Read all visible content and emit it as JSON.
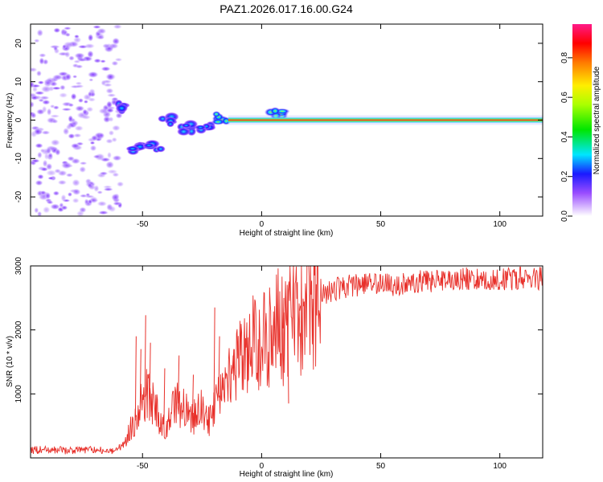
{
  "title": "PAZ1.2026.017.16.00.G24",
  "chart_data": [
    {
      "type": "heatmap",
      "xlabel": "Height of straight line (km)",
      "ylabel": "Frequency (Hz)",
      "xlim": [
        -97,
        118
      ],
      "ylim": [
        -25,
        25
      ],
      "xticks": [
        -50,
        0,
        50,
        100
      ],
      "yticks": [
        -20,
        -10,
        0,
        10,
        20
      ],
      "colorbar": {
        "label": "Normalized spectral amplitude",
        "range": [
          0.0,
          0.97
        ],
        "ticks": [
          0.0,
          0.2,
          0.4,
          0.6,
          0.8
        ],
        "tick_labels": [
          "0.0",
          "0.2",
          "0.4",
          "0.6",
          "0.8"
        ]
      },
      "features": [
        {
          "name": "noise-region",
          "x_range": [
            -97,
            -59
          ],
          "freq_range": [
            -25,
            25
          ],
          "amplitude": 0.05
        },
        {
          "name": "blob",
          "x": -58,
          "freq": 3.5,
          "amplitude": 0.35
        },
        {
          "name": "blob",
          "x": -52,
          "freq": -7.5,
          "amplitude": 0.3
        },
        {
          "name": "blob",
          "x": -45,
          "freq": -7.0,
          "amplitude": 0.25
        },
        {
          "name": "blob",
          "x": -40,
          "freq": 0.0,
          "amplitude": 0.2
        },
        {
          "name": "blob",
          "x": -32,
          "freq": -2.0,
          "amplitude": 0.35
        },
        {
          "name": "blob",
          "x": -23,
          "freq": -1.5,
          "amplitude": 0.3
        },
        {
          "name": "blob",
          "x": -17,
          "freq": 0.5,
          "amplitude": 0.45
        },
        {
          "name": "blob",
          "x": 6,
          "freq": 1.5,
          "amplitude": 0.5
        },
        {
          "name": "carrier-line",
          "x_range": [
            -14,
            118
          ],
          "freq": 0.0,
          "amplitude": 0.95
        }
      ]
    },
    {
      "type": "line",
      "xlabel": "Height of straight line (km)",
      "ylabel": "SNR (10 * v/v)",
      "xlim": [
        -97,
        118
      ],
      "ylim": [
        0,
        3000
      ],
      "xticks": [
        -50,
        0,
        50,
        100
      ],
      "yticks": [
        1000,
        2000,
        3000
      ],
      "series": [
        {
          "name": "SNR",
          "color": "#e8302a",
          "x": [
            -97,
            -90,
            -80,
            -70,
            -62,
            -58,
            -55,
            -52,
            -50,
            -48,
            -46,
            -44,
            -42,
            -40,
            -38,
            -35,
            -32,
            -30,
            -28,
            -26,
            -24,
            -22,
            -20,
            -18,
            -16,
            -14,
            -12,
            -10,
            -8,
            -6,
            -4,
            -2,
            0,
            2,
            4,
            6,
            8,
            10,
            12,
            14,
            16,
            18,
            20,
            24,
            28,
            32,
            36,
            40,
            45,
            50,
            55,
            60,
            65,
            70,
            75,
            80,
            85,
            90,
            95,
            100,
            105,
            110,
            114,
            118
          ],
          "values": [
            120,
            130,
            110,
            130,
            120,
            200,
            450,
            650,
            900,
            1000,
            850,
            700,
            600,
            450,
            700,
            850,
            750,
            600,
            650,
            800,
            700,
            600,
            800,
            1000,
            1150,
            1300,
            1400,
            1450,
            1600,
            1700,
            1750,
            1800,
            1950,
            1900,
            2000,
            2100,
            2050,
            2000,
            2150,
            2200,
            2300,
            2400,
            2450,
            2550,
            2600,
            2650,
            2680,
            2700,
            2720,
            2740,
            2700,
            2720,
            2750,
            2770,
            2760,
            2780,
            2800,
            2790,
            2810,
            2800,
            2790,
            2820,
            2810,
            2800
          ],
          "spikes": [
            [
              -53,
              1900
            ],
            [
              -51,
              1700
            ],
            [
              -49,
              2230
            ],
            [
              -47,
              1800
            ],
            [
              -41,
              1400
            ],
            [
              -35,
              1600
            ],
            [
              -29,
              1300
            ],
            [
              -20,
              2350
            ],
            [
              -18,
              1900
            ],
            [
              -12,
              1700
            ],
            [
              9,
              2500
            ],
            [
              13,
              2850
            ],
            [
              16,
              2380
            ],
            [
              11,
              850
            ],
            [
              -6,
              1200
            ]
          ]
        }
      ]
    }
  ]
}
